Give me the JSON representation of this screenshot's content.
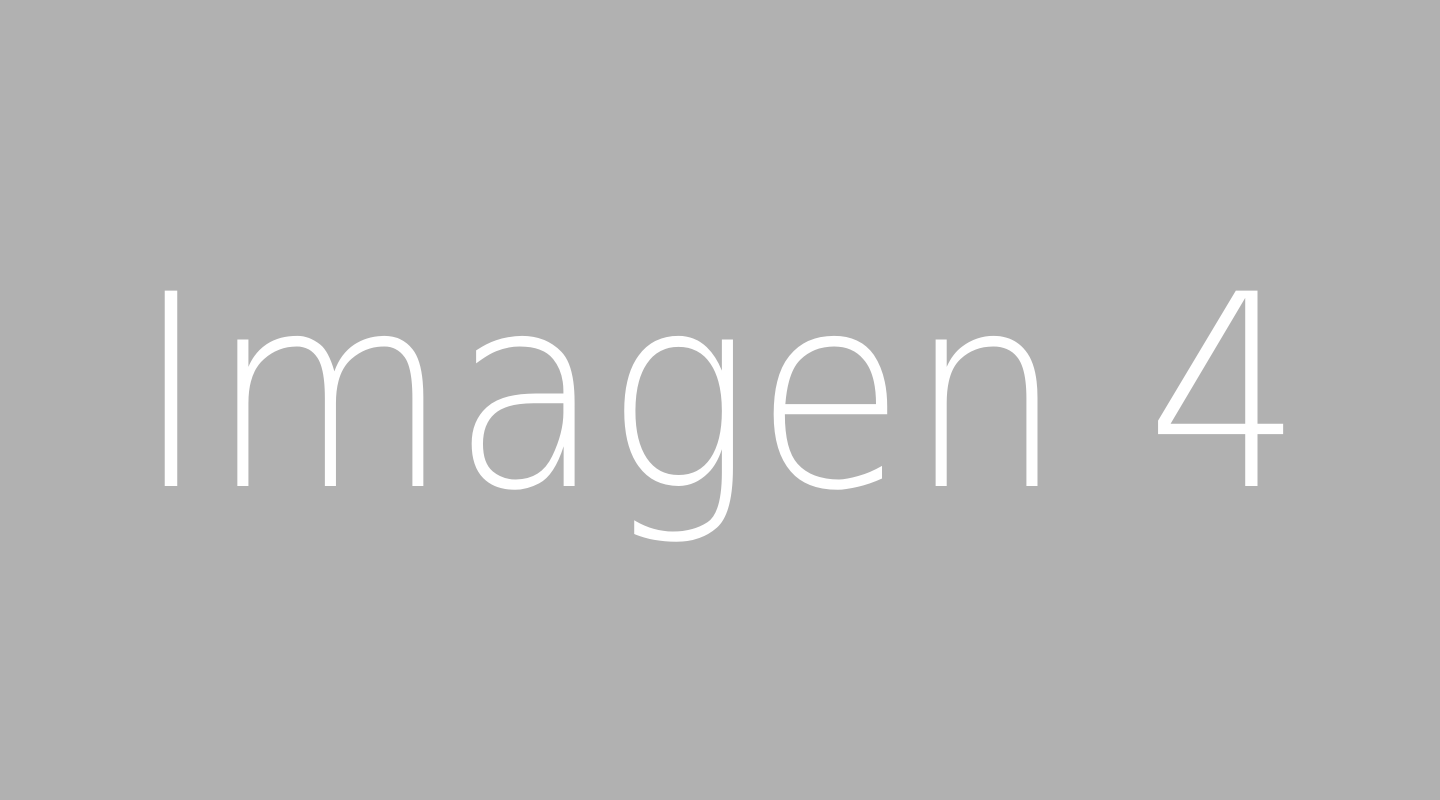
{
  "wordmark": {
    "text": "Imagen 4"
  },
  "colors": {
    "background": "#b1b1b1",
    "text": "#ffffff"
  }
}
